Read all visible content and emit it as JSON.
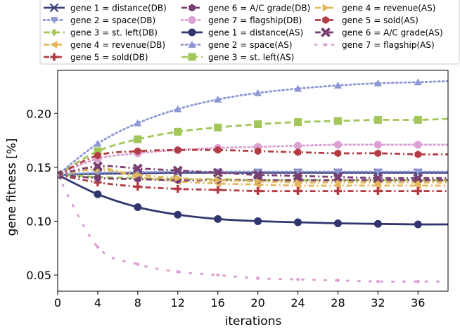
{
  "chart_data": {
    "type": "line",
    "title": "",
    "xlabel": "iterations",
    "ylabel": "gene fitness [%]",
    "xlim": [
      0,
      39
    ],
    "ylim": [
      0.035,
      0.24
    ],
    "xticks": [
      0,
      4,
      8,
      12,
      16,
      20,
      24,
      28,
      32,
      36
    ],
    "xtick_labels": [
      "0",
      "4",
      "8",
      "12",
      "16",
      "20",
      "24",
      "28",
      "32",
      "36"
    ],
    "yticks": [
      0.05,
      0.1,
      0.15,
      0.2
    ],
    "ytick_labels": [
      "0.05",
      "0.10",
      "0.15",
      "0.20"
    ],
    "grid": false,
    "legend_position": "top",
    "x": [
      0,
      4,
      8,
      12,
      16,
      20,
      24,
      28,
      32,
      36,
      39
    ],
    "series": [
      {
        "name": "gene 1 = distance(DB)",
        "color": "#3b3f7a",
        "dash": "solid",
        "marker": "x",
        "values": [
          0.143,
          0.144,
          0.1445,
          0.145,
          0.145,
          0.145,
          0.145,
          0.145,
          0.145,
          0.145,
          0.145
        ]
      },
      {
        "name": "gene 2 = space(DB)",
        "color": "#8e96d4",
        "dash": "dot",
        "marker": "triangle-down",
        "values": [
          0.143,
          0.145,
          0.1455,
          0.146,
          0.146,
          0.146,
          0.146,
          0.146,
          0.146,
          0.146,
          0.146
        ]
      },
      {
        "name": "gene 3 = st. left(DB)",
        "color": "#a3c659",
        "dash": "dash",
        "marker": "diamond",
        "values": [
          0.143,
          0.141,
          0.14,
          0.139,
          0.139,
          0.138,
          0.138,
          0.138,
          0.138,
          0.138,
          0.138
        ]
      },
      {
        "name": "gene 4 = revenue(DB)",
        "color": "#e3b75b",
        "dash": "dashdot",
        "marker": "triangle-left",
        "values": [
          0.143,
          0.15,
          0.141,
          0.137,
          0.135,
          0.134,
          0.133,
          0.133,
          0.133,
          0.133,
          0.133
        ]
      },
      {
        "name": "gene 5 = sold(DB)",
        "color": "#b23c44",
        "dash": "dashdot",
        "marker": "plus",
        "values": [
          0.143,
          0.136,
          0.132,
          0.13,
          0.129,
          0.128,
          0.128,
          0.128,
          0.128,
          0.128,
          0.128
        ]
      },
      {
        "name": "gene 6 = A/C grade(DB)",
        "color": "#7a3f70",
        "dash": "dashdot",
        "marker": "hexagon",
        "values": [
          0.143,
          0.14,
          0.139,
          0.138,
          0.138,
          0.138,
          0.138,
          0.138,
          0.138,
          0.138,
          0.138
        ]
      },
      {
        "name": "gene 7 = flagship(DB)",
        "color": "#dca0d3",
        "dash": "dot",
        "marker": "circle",
        "values": [
          0.143,
          0.158,
          0.163,
          0.166,
          0.168,
          0.169,
          0.17,
          0.171,
          0.171,
          0.171,
          0.171
        ]
      },
      {
        "name": "gene 1 = distance(AS)",
        "color": "#31356e",
        "dash": "solid",
        "marker": "circle",
        "values": [
          0.143,
          0.125,
          0.113,
          0.106,
          0.102,
          0.1,
          0.099,
          0.098,
          0.0975,
          0.097,
          0.097
        ]
      },
      {
        "name": "gene 2 = space(AS)",
        "color": "#8e96d4",
        "dash": "dot",
        "marker": "triangle-up",
        "values": [
          0.143,
          0.172,
          0.191,
          0.204,
          0.213,
          0.219,
          0.223,
          0.226,
          0.228,
          0.229,
          0.23
        ]
      },
      {
        "name": "gene 3 = st. left(AS)",
        "color": "#a3c659",
        "dash": "dash",
        "marker": "square",
        "values": [
          0.143,
          0.165,
          0.176,
          0.183,
          0.187,
          0.19,
          0.192,
          0.193,
          0.194,
          0.194,
          0.195
        ]
      },
      {
        "name": "gene 4 = revenue(AS)",
        "color": "#e3b75b",
        "dash": "dashdot",
        "marker": "triangle-right",
        "values": [
          0.143,
          0.148,
          0.143,
          0.14,
          0.138,
          0.137,
          0.136,
          0.136,
          0.136,
          0.136,
          0.136
        ]
      },
      {
        "name": "gene 5 = sold(AS)",
        "color": "#b23c44",
        "dash": "dashdot",
        "marker": "hexagon",
        "values": [
          0.143,
          0.161,
          0.165,
          0.166,
          0.166,
          0.165,
          0.164,
          0.163,
          0.163,
          0.162,
          0.162
        ]
      },
      {
        "name": "gene 6 = A/C grade(AS)",
        "color": "#7a3f70",
        "dash": "dashdot",
        "marker": "x-filled",
        "values": [
          0.143,
          0.151,
          0.149,
          0.147,
          0.145,
          0.143,
          0.142,
          0.141,
          0.14,
          0.14,
          0.14
        ]
      },
      {
        "name": "gene 7 = flagship(AS)",
        "color": "#dca0d3",
        "dash": "dot-sparse",
        "marker": "small-dot",
        "values": [
          0.143,
          0.076,
          0.06,
          0.053,
          0.05,
          0.047,
          0.046,
          0.045,
          0.044,
          0.044,
          0.044
        ]
      }
    ]
  }
}
